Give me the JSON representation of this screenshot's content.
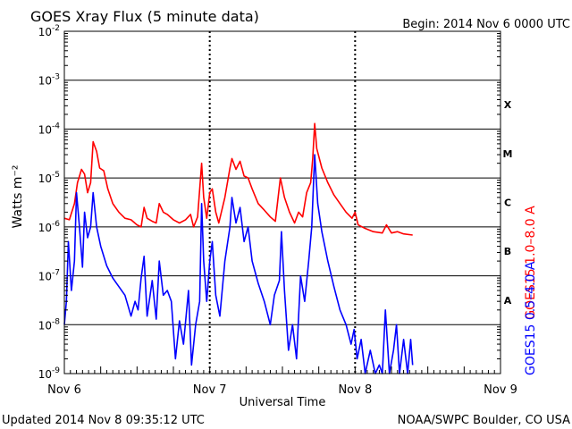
{
  "header": {
    "title": "GOES Xray Flux (5 minute data)",
    "begin_label": "Begin:  2014 Nov 6 0000 UTC"
  },
  "footer": {
    "updated": "Updated 2014 Nov  8 09:35:12 UTC",
    "credit": "NOAA/SWPC Boulder, CO USA"
  },
  "chart_data": {
    "type": "line",
    "title": "GOES Xray Flux (5 minute data)",
    "xlabel": "Universal Time",
    "ylabel": "Watts m⁻²",
    "yscale": "log",
    "ylim": [
      1e-09,
      0.01
    ],
    "xlim": [
      "2014-11-06 00:00",
      "2014-11-09 00:00"
    ],
    "x_tick_labels": [
      "Nov 6",
      "Nov 7",
      "Nov 8",
      "Nov 9"
    ],
    "y_tick_labels": [
      {
        "base": "10",
        "exp": "-9"
      },
      {
        "base": "10",
        "exp": "-8"
      },
      {
        "base": "10",
        "exp": "-7"
      },
      {
        "base": "10",
        "exp": "-6"
      },
      {
        "base": "10",
        "exp": "-5"
      },
      {
        "base": "10",
        "exp": "-4"
      },
      {
        "base": "10",
        "exp": "-3"
      },
      {
        "base": "10",
        "exp": "-2"
      }
    ],
    "flare_classes": [
      "A",
      "B",
      "C",
      "M",
      "X"
    ],
    "grid": true,
    "colors": {
      "long": "#ff0000",
      "short": "#0000ff"
    },
    "series": [
      {
        "name": "GOES15 1.0–8.0 A",
        "color": "#ff0000",
        "points": [
          [
            "2014-11-06 00:00",
            1.5e-06
          ],
          [
            "2014-11-06 00:50",
            1.4e-06
          ],
          [
            "2014-11-06 01:40",
            3e-06
          ],
          [
            "2014-11-06 02:10",
            8e-06
          ],
          [
            "2014-11-06 02:50",
            1.5e-05
          ],
          [
            "2014-11-06 03:20",
            1.2e-05
          ],
          [
            "2014-11-06 03:50",
            5e-06
          ],
          [
            "2014-11-06 04:20",
            8e-06
          ],
          [
            "2014-11-06 04:45",
            5.5e-05
          ],
          [
            "2014-11-06 05:20",
            3.5e-05
          ],
          [
            "2014-11-06 05:50",
            1.6e-05
          ],
          [
            "2014-11-06 06:30",
            1.4e-05
          ],
          [
            "2014-11-06 07:10",
            6e-06
          ],
          [
            "2014-11-06 08:00",
            3e-06
          ],
          [
            "2014-11-06 09:00",
            2e-06
          ],
          [
            "2014-11-06 10:00",
            1.5e-06
          ],
          [
            "2014-11-06 11:00",
            1.4e-06
          ],
          [
            "2014-11-06 12:00",
            1.1e-06
          ],
          [
            "2014-11-06 12:40",
            1e-06
          ],
          [
            "2014-11-06 13:10",
            2.5e-06
          ],
          [
            "2014-11-06 13:40",
            1.5e-06
          ],
          [
            "2014-11-06 14:30",
            1.3e-06
          ],
          [
            "2014-11-06 15:10",
            1.2e-06
          ],
          [
            "2014-11-06 15:40",
            3e-06
          ],
          [
            "2014-11-06 16:20",
            2e-06
          ],
          [
            "2014-11-06 17:00",
            1.8e-06
          ],
          [
            "2014-11-06 18:00",
            1.4e-06
          ],
          [
            "2014-11-06 19:00",
            1.2e-06
          ],
          [
            "2014-11-06 20:00",
            1.4e-06
          ],
          [
            "2014-11-06 20:50",
            1.8e-06
          ],
          [
            "2014-11-06 21:20",
            1e-06
          ],
          [
            "2014-11-06 22:00",
            1.6e-06
          ],
          [
            "2014-11-06 22:40",
            2e-05
          ],
          [
            "2014-11-06 23:00",
            4e-06
          ],
          [
            "2014-11-06 23:30",
            1.5e-06
          ],
          [
            "2014-11-07 00:00",
            5e-06
          ],
          [
            "2014-11-07 00:25",
            6e-06
          ],
          [
            "2014-11-07 01:00",
            2e-06
          ],
          [
            "2014-11-07 01:30",
            1.2e-06
          ],
          [
            "2014-11-07 02:30",
            4e-06
          ],
          [
            "2014-11-07 03:20",
            1.6e-05
          ],
          [
            "2014-11-07 03:40",
            2.5e-05
          ],
          [
            "2014-11-07 04:20",
            1.5e-05
          ],
          [
            "2014-11-07 05:00",
            2.2e-05
          ],
          [
            "2014-11-07 05:40",
            1.1e-05
          ],
          [
            "2014-11-07 06:20",
            1e-05
          ],
          [
            "2014-11-07 07:00",
            6e-06
          ],
          [
            "2014-11-07 08:00",
            3e-06
          ],
          [
            "2014-11-07 09:00",
            2.2e-06
          ],
          [
            "2014-11-07 10:00",
            1.6e-06
          ],
          [
            "2014-11-07 10:50",
            1.3e-06
          ],
          [
            "2014-11-07 11:40",
            1e-05
          ],
          [
            "2014-11-07 12:20",
            4e-06
          ],
          [
            "2014-11-07 13:10",
            2e-06
          ],
          [
            "2014-11-07 14:00",
            1.2e-06
          ],
          [
            "2014-11-07 14:40",
            2e-06
          ],
          [
            "2014-11-07 15:20",
            1.6e-06
          ],
          [
            "2014-11-07 16:00",
            5e-06
          ],
          [
            "2014-11-07 16:40",
            8e-06
          ],
          [
            "2014-11-07 17:00",
            2.5e-05
          ],
          [
            "2014-11-07 17:20",
            0.00013
          ],
          [
            "2014-11-07 17:40",
            4e-05
          ],
          [
            "2014-11-07 18:30",
            1.6e-05
          ],
          [
            "2014-11-07 19:30",
            8e-06
          ],
          [
            "2014-11-07 20:30",
            4.5e-06
          ],
          [
            "2014-11-07 21:30",
            3e-06
          ],
          [
            "2014-11-07 22:30",
            2e-06
          ],
          [
            "2014-11-07 23:30",
            1.5e-06
          ],
          [
            "2014-11-08 00:00",
            2e-06
          ],
          [
            "2014-11-08 00:30",
            1.1e-06
          ],
          [
            "2014-11-08 01:30",
            9.5e-07
          ],
          [
            "2014-11-08 03:00",
            8e-07
          ],
          [
            "2014-11-08 04:30",
            7.5e-07
          ],
          [
            "2014-11-08 05:10",
            1.1e-06
          ],
          [
            "2014-11-08 06:00",
            7.5e-07
          ],
          [
            "2014-11-08 07:00",
            8e-07
          ],
          [
            "2014-11-08 08:00",
            7.2e-07
          ],
          [
            "2014-11-08 09:30",
            6.8e-07
          ]
        ]
      },
      {
        "name": "GOES15 0.5–4.0 A",
        "color": "#0000ff",
        "points": [
          [
            "2014-11-06 00:00",
            1e-08
          ],
          [
            "2014-11-06 00:20",
            3e-08
          ],
          [
            "2014-11-06 00:40",
            5e-07
          ],
          [
            "2014-11-06 01:10",
            5e-08
          ],
          [
            "2014-11-06 01:40",
            2e-07
          ],
          [
            "2014-11-06 02:00",
            5e-06
          ],
          [
            "2014-11-06 02:30",
            1e-06
          ],
          [
            "2014-11-06 03:00",
            1.5e-07
          ],
          [
            "2014-11-06 03:20",
            2e-06
          ],
          [
            "2014-11-06 03:50",
            6e-07
          ],
          [
            "2014-11-06 04:20",
            1e-06
          ],
          [
            "2014-11-06 04:45",
            5e-06
          ],
          [
            "2014-11-06 05:20",
            1e-06
          ],
          [
            "2014-11-06 06:00",
            4e-07
          ],
          [
            "2014-11-06 07:00",
            1.6e-07
          ],
          [
            "2014-11-06 08:00",
            9e-08
          ],
          [
            "2014-11-06 09:00",
            6e-08
          ],
          [
            "2014-11-06 10:00",
            4e-08
          ],
          [
            "2014-11-06 11:00",
            1.5e-08
          ],
          [
            "2014-11-06 11:40",
            3e-08
          ],
          [
            "2014-11-06 12:10",
            2e-08
          ],
          [
            "2014-11-06 12:40",
            9e-08
          ],
          [
            "2014-11-06 13:10",
            2.5e-07
          ],
          [
            "2014-11-06 13:40",
            1.5e-08
          ],
          [
            "2014-11-06 14:30",
            8e-08
          ],
          [
            "2014-11-06 15:10",
            1.3e-08
          ],
          [
            "2014-11-06 15:40",
            2e-07
          ],
          [
            "2014-11-06 16:20",
            4e-08
          ],
          [
            "2014-11-06 17:00",
            5e-08
          ],
          [
            "2014-11-06 17:40",
            3e-08
          ],
          [
            "2014-11-06 18:20",
            2e-09
          ],
          [
            "2014-11-06 19:00",
            1.2e-08
          ],
          [
            "2014-11-06 19:40",
            4e-09
          ],
          [
            "2014-11-06 20:30",
            5e-08
          ],
          [
            "2014-11-06 21:00",
            1.5e-09
          ],
          [
            "2014-11-06 21:40",
            1e-08
          ],
          [
            "2014-11-06 22:20",
            3e-08
          ],
          [
            "2014-11-06 22:40",
            3e-06
          ],
          [
            "2014-11-06 23:00",
            2e-07
          ],
          [
            "2014-11-06 23:30",
            3e-08
          ],
          [
            "2014-11-07 00:00",
            2e-07
          ],
          [
            "2014-11-07 00:25",
            5e-07
          ],
          [
            "2014-11-07 01:00",
            4e-08
          ],
          [
            "2014-11-07 01:40",
            1.5e-08
          ],
          [
            "2014-11-07 02:30",
            2e-07
          ],
          [
            "2014-11-07 03:20",
            1e-06
          ],
          [
            "2014-11-07 03:40",
            4e-06
          ],
          [
            "2014-11-07 04:20",
            1.2e-06
          ],
          [
            "2014-11-07 05:00",
            2.5e-06
          ],
          [
            "2014-11-07 05:40",
            5e-07
          ],
          [
            "2014-11-07 06:20",
            1e-06
          ],
          [
            "2014-11-07 07:00",
            2e-07
          ],
          [
            "2014-11-07 08:00",
            7e-08
          ],
          [
            "2014-11-07 09:00",
            3e-08
          ],
          [
            "2014-11-07 10:00",
            1e-08
          ],
          [
            "2014-11-07 10:40",
            4e-08
          ],
          [
            "2014-11-07 11:30",
            8e-08
          ],
          [
            "2014-11-07 11:50",
            8e-07
          ],
          [
            "2014-11-07 12:20",
            5e-08
          ],
          [
            "2014-11-07 13:00",
            3e-09
          ],
          [
            "2014-11-07 13:40",
            1e-08
          ],
          [
            "2014-11-07 14:20",
            2e-09
          ],
          [
            "2014-11-07 15:00",
            1e-07
          ],
          [
            "2014-11-07 15:40",
            3e-08
          ],
          [
            "2014-11-07 16:20",
            2e-07
          ],
          [
            "2014-11-07 16:50",
            1e-06
          ],
          [
            "2014-11-07 17:20",
            3e-05
          ],
          [
            "2014-11-07 17:50",
            3e-06
          ],
          [
            "2014-11-07 18:30",
            8e-07
          ],
          [
            "2014-11-07 19:30",
            2e-07
          ],
          [
            "2014-11-07 20:30",
            6e-08
          ],
          [
            "2014-11-07 21:30",
            2e-08
          ],
          [
            "2014-11-07 22:30",
            1e-08
          ],
          [
            "2014-11-07 23:20",
            4e-09
          ],
          [
            "2014-11-07 23:50",
            8e-09
          ],
          [
            "2014-11-08 00:20",
            2e-09
          ],
          [
            "2014-11-08 01:00",
            5e-09
          ],
          [
            "2014-11-08 01:40",
            1e-09
          ],
          [
            "2014-11-08 02:30",
            3e-09
          ],
          [
            "2014-11-08 03:20",
            1e-09
          ],
          [
            "2014-11-08 04:00",
            1.5e-09
          ],
          [
            "2014-11-08 04:30",
            1e-09
          ],
          [
            "2014-11-08 05:00",
            2e-08
          ],
          [
            "2014-11-08 05:40",
            1e-09
          ],
          [
            "2014-11-08 06:20",
            3e-09
          ],
          [
            "2014-11-08 06:50",
            1e-08
          ],
          [
            "2014-11-08 07:20",
            1e-09
          ],
          [
            "2014-11-08 08:00",
            5e-09
          ],
          [
            "2014-11-08 08:40",
            1e-09
          ],
          [
            "2014-11-08 09:10",
            5e-09
          ],
          [
            "2014-11-08 09:30",
            1.5e-09
          ]
        ]
      }
    ]
  }
}
